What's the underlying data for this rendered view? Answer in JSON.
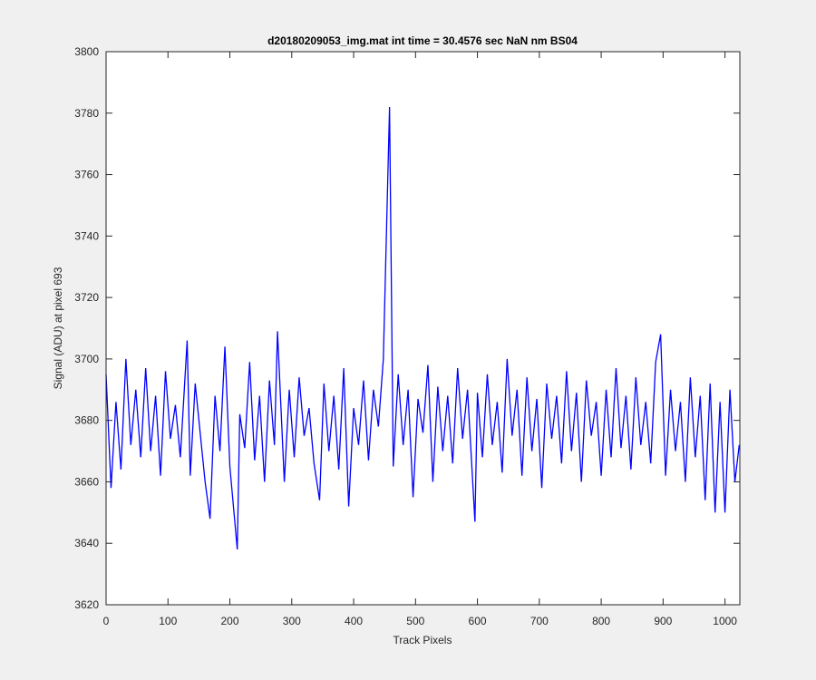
{
  "chart_data": {
    "type": "line",
    "title": "d20180209053_img.mat int time = 30.4576 sec  NaN nm BS04",
    "x_label": "Track Pixels",
    "y_label": "Signal (ADU) at pixel 693",
    "x": [
      0,
      8,
      16,
      24,
      32,
      40,
      48,
      56,
      64,
      72,
      80,
      88,
      96,
      104,
      112,
      120,
      131,
      136,
      144,
      152,
      160,
      168,
      176,
      184,
      192,
      200,
      212,
      216,
      224,
      232,
      240,
      248,
      256,
      264,
      272,
      277,
      288,
      296,
      304,
      312,
      320,
      328,
      336,
      345,
      352,
      360,
      368,
      376,
      384,
      392,
      400,
      408,
      416,
      424,
      432,
      440,
      448,
      458,
      464,
      472,
      480,
      488,
      496,
      504,
      512,
      520,
      528,
      536,
      544,
      552,
      560,
      568,
      576,
      584,
      596,
      600,
      608,
      616,
      624,
      632,
      640,
      648,
      656,
      664,
      672,
      680,
      688,
      696,
      704,
      712,
      720,
      728,
      736,
      744,
      752,
      760,
      768,
      776,
      784,
      792,
      800,
      808,
      816,
      824,
      832,
      840,
      848,
      856,
      864,
      872,
      880,
      888,
      896,
      904,
      912,
      920,
      928,
      936,
      944,
      952,
      960,
      968,
      976,
      984,
      992,
      1000,
      1008,
      1016,
      1023
    ],
    "series": [
      {
        "name": "signal",
        "color": "#0000ff",
        "values": [
          3695,
          3658,
          3686,
          3664,
          3700,
          3672,
          3690,
          3668,
          3697,
          3670,
          3688,
          3662,
          3696,
          3674,
          3685,
          3668,
          3706,
          3662,
          3692,
          3676,
          3660,
          3648,
          3688,
          3670,
          3704,
          3665,
          3638,
          3682,
          3671,
          3699,
          3667,
          3688,
          3660,
          3693,
          3672,
          3709,
          3660,
          3690,
          3668,
          3694,
          3675,
          3684,
          3666,
          3654,
          3692,
          3670,
          3688,
          3664,
          3697,
          3652,
          3684,
          3672,
          3693,
          3667,
          3690,
          3678,
          3700,
          3782,
          3665,
          3695,
          3672,
          3690,
          3655,
          3687,
          3676,
          3698,
          3660,
          3691,
          3670,
          3688,
          3666,
          3697,
          3674,
          3690,
          3647,
          3689,
          3668,
          3695,
          3672,
          3686,
          3663,
          3700,
          3675,
          3690,
          3662,
          3694,
          3670,
          3687,
          3658,
          3692,
          3674,
          3688,
          3666,
          3696,
          3670,
          3689,
          3660,
          3693,
          3675,
          3686,
          3662,
          3690,
          3668,
          3697,
          3671,
          3688,
          3664,
          3694,
          3672,
          3686,
          3666,
          3699,
          3708,
          3662,
          3690,
          3670,
          3686,
          3660,
          3694,
          3668,
          3688,
          3654,
          3692,
          3650,
          3686,
          3650,
          3690,
          3660,
          3672
        ]
      }
    ],
    "xlim": [
      0,
      1024
    ],
    "ylim": [
      3620,
      3800
    ],
    "xticks": [
      0,
      100,
      200,
      300,
      400,
      500,
      600,
      700,
      800,
      900,
      1000
    ],
    "yticks": [
      3620,
      3640,
      3660,
      3680,
      3700,
      3720,
      3740,
      3760,
      3780,
      3800
    ]
  }
}
